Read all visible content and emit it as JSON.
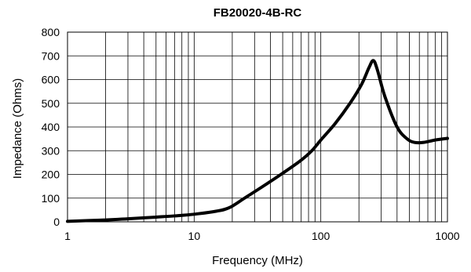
{
  "chart_data": {
    "type": "line",
    "title": "FB20020-4B-RC",
    "xlabel": "Frequency (MHz)",
    "ylabel": "Impedance (Ohms)",
    "x_scale": "log",
    "xlim": [
      1,
      1000
    ],
    "ylim": [
      0,
      800
    ],
    "grid": true,
    "x_ticks": [
      {
        "value": 1,
        "label": "1"
      },
      {
        "value": 10,
        "label": "10"
      },
      {
        "value": 100,
        "label": "100"
      },
      {
        "value": 1000,
        "label": "1000"
      }
    ],
    "y_ticks": [
      {
        "value": 0,
        "label": "0"
      },
      {
        "value": 100,
        "label": "100"
      },
      {
        "value": 200,
        "label": "200"
      },
      {
        "value": 300,
        "label": "300"
      },
      {
        "value": 400,
        "label": "400"
      },
      {
        "value": 500,
        "label": "500"
      },
      {
        "value": 600,
        "label": "600"
      },
      {
        "value": 700,
        "label": "700"
      },
      {
        "value": 800,
        "label": "800"
      }
    ],
    "series": [
      {
        "x": [
          1,
          2,
          3,
          5,
          7,
          10,
          15,
          19,
          25,
          35,
          50,
          70,
          85,
          100,
          130,
          170,
          210,
          240,
          260,
          280,
          320,
          400,
          480,
          550,
          650,
          800,
          1000
        ],
        "values": [
          2,
          8,
          13,
          20,
          25,
          32,
          45,
          60,
          100,
          150,
          205,
          260,
          300,
          345,
          415,
          500,
          580,
          650,
          680,
          640,
          530,
          400,
          350,
          335,
          335,
          345,
          352
        ]
      }
    ]
  }
}
